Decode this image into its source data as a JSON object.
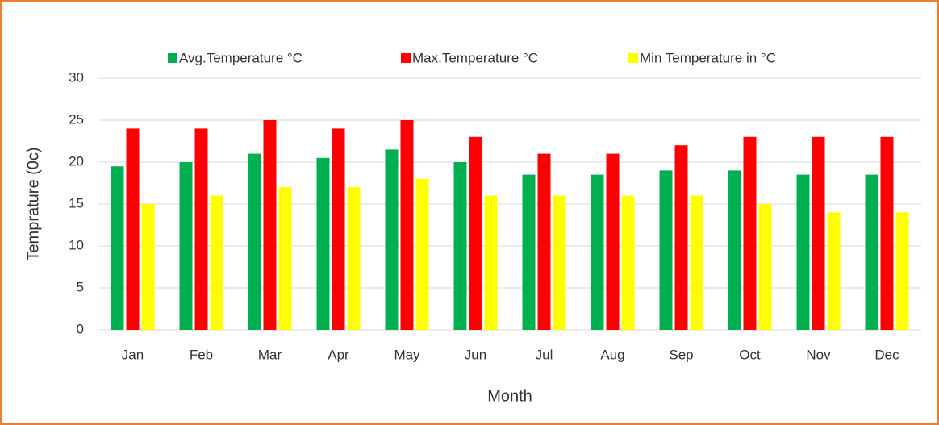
{
  "chart_data": {
    "type": "bar",
    "x_label": "Month",
    "y_label": "Temprature (0c)",
    "categories": [
      "Jan",
      "Feb",
      "Mar",
      "Apr",
      "May",
      "Jun",
      "Jul",
      "Aug",
      "Sep",
      "Oct",
      "Nov",
      "Dec"
    ],
    "series": [
      {
        "name": "Avg.Temperature °C",
        "color": "#00b050",
        "values": [
          19.5,
          20,
          21,
          20.5,
          21.5,
          20,
          18.5,
          18.5,
          19,
          19,
          18.5,
          18.5
        ]
      },
      {
        "name": "Max.Temperature °C",
        "color": "#ff0000",
        "values": [
          24,
          24,
          25,
          24,
          25,
          23,
          21,
          21,
          22,
          23,
          23,
          23
        ]
      },
      {
        "name": "Min Temperature in °C",
        "color": "#ffff00",
        "values": [
          15,
          16,
          17,
          17,
          18,
          16,
          16,
          16,
          16,
          15,
          14,
          14
        ]
      }
    ],
    "ylim": [
      0,
      30
    ],
    "yticks": [
      0,
      5,
      10,
      15,
      20,
      25,
      30
    ],
    "grid": true,
    "legend": "top"
  }
}
